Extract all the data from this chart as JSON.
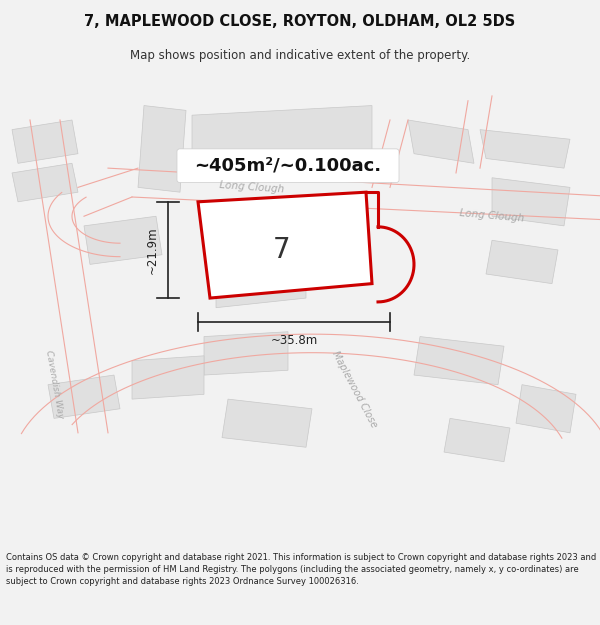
{
  "title": "7, MAPLEWOOD CLOSE, ROYTON, OLDHAM, OL2 5DS",
  "subtitle": "Map shows position and indicative extent of the property.",
  "area_text": "~405m²/~0.100ac.",
  "plot_number": "7",
  "dim_width": "~35.8m",
  "dim_height": "~21.9m",
  "footer_text": "Contains OS data © Crown copyright and database right 2021. This information is subject to Crown copyright and database rights 2023 and is reproduced with the permission of HM Land Registry. The polygons (including the associated geometry, namely x, y co-ordinates) are subject to Crown copyright and database rights 2023 Ordnance Survey 100026316.",
  "bg_color": "#f2f2f2",
  "map_bg": "#ffffff",
  "building_color": "#e0e0e0",
  "building_edge": "#c8c8c8",
  "highlight_color": "#cc0000",
  "highlight_fill": "#ffffff",
  "road_line_color": "#f0a8a0",
  "street_label_color": "#aaaaaa",
  "dim_color": "#222222",
  "text_color": "#111111"
}
